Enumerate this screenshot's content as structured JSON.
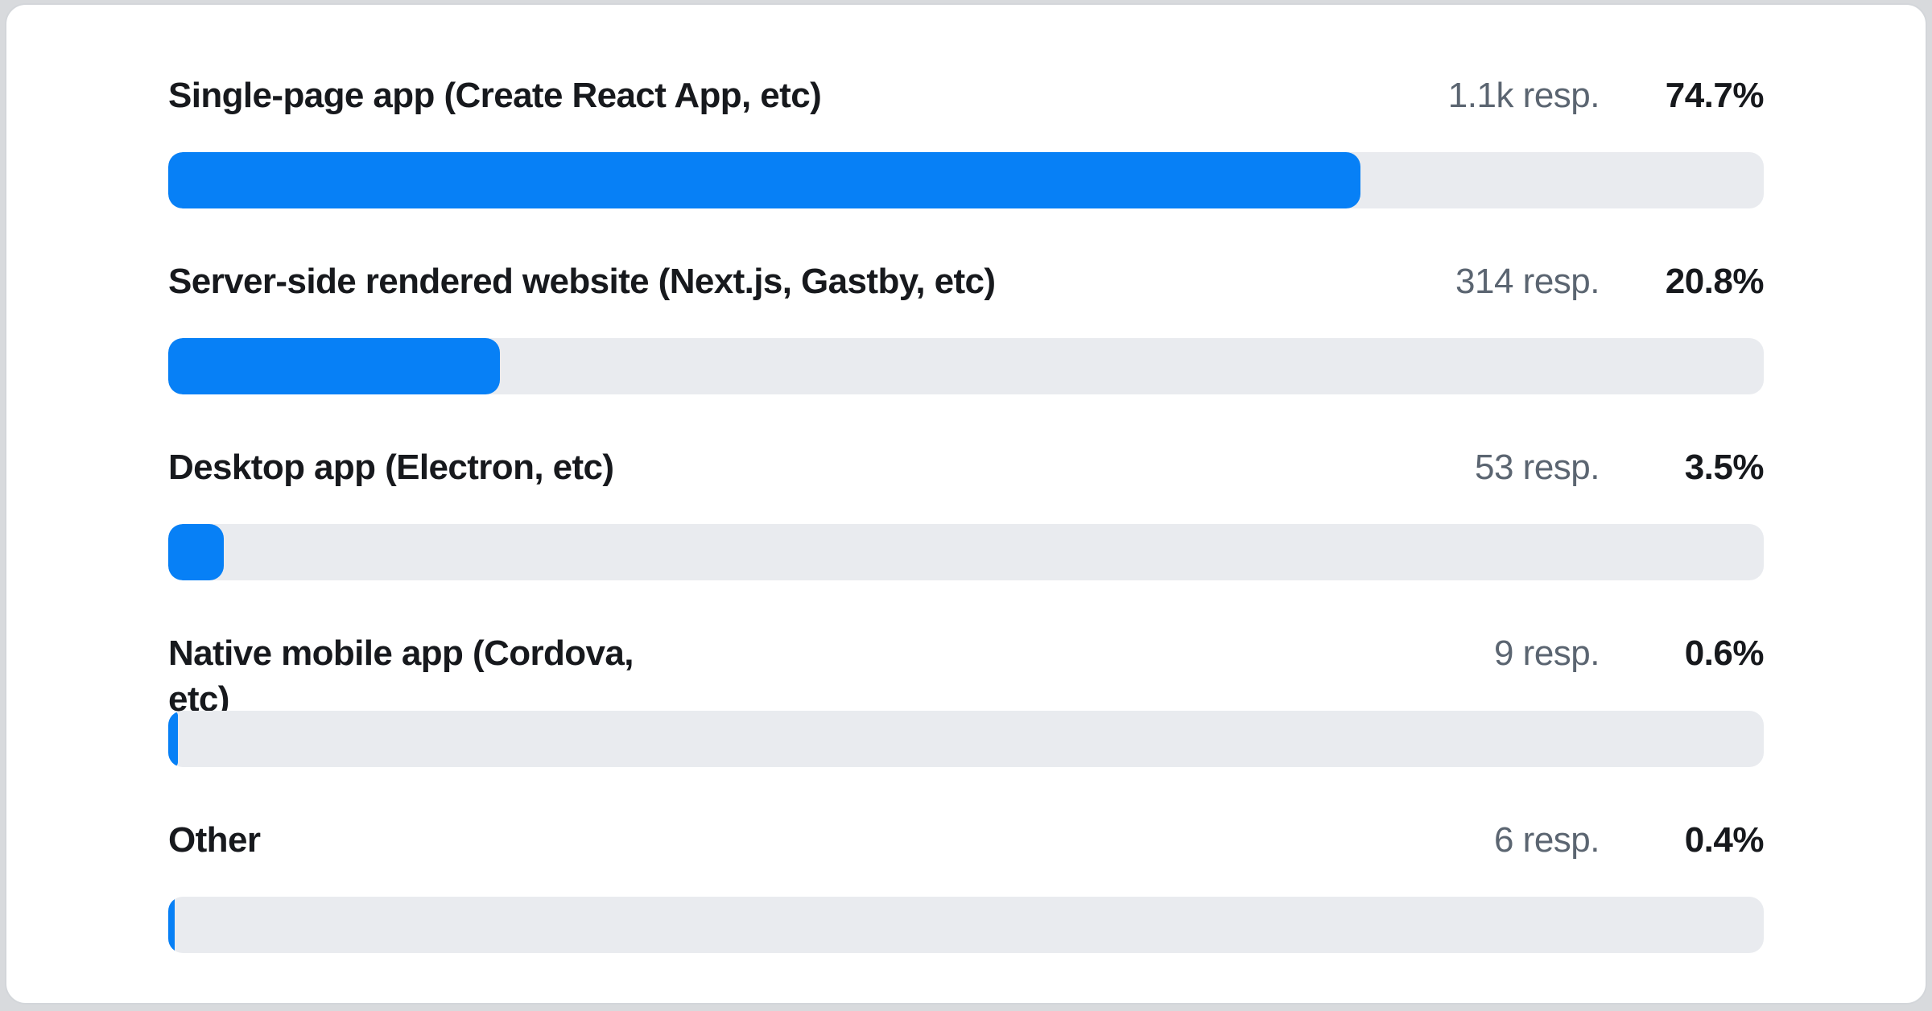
{
  "chart_data": {
    "type": "bar",
    "orientation": "horizontal",
    "title": "",
    "categories": [
      "Single-page app (Create React App, etc)",
      "Server-side rendered website (Next.js, Gastby, etc)",
      "Desktop app (Electron, etc)",
      "Native mobile app (Cordova, etc)",
      "Other"
    ],
    "values": [
      74.7,
      20.8,
      3.5,
      0.6,
      0.4
    ],
    "value_labels": [
      "74.7%",
      "20.8%",
      "3.5%",
      "0.6%",
      "0.4%"
    ],
    "response_counts": [
      "1.1k",
      "314",
      "53",
      "9",
      "6"
    ],
    "response_labels": [
      "1.1k resp.",
      "314 resp.",
      "53 resp.",
      "9 resp.",
      "6 resp."
    ],
    "xlim": [
      0,
      100
    ],
    "grid": false,
    "legend": false,
    "bar_color": "#0780f6",
    "track_color": "#e9ebef"
  },
  "rows": [
    {
      "label": "Single-page app (Create React App, etc)",
      "responses": "1.1k resp.",
      "percent": "74.7%",
      "value": 74.7
    },
    {
      "label": "Server-side rendered website (Next.js, Gastby, etc)",
      "responses": "314 resp.",
      "percent": "20.8%",
      "value": 20.8
    },
    {
      "label": "Desktop app (Electron, etc)",
      "responses": "53 resp.",
      "percent": "3.5%",
      "value": 3.5
    },
    {
      "label": "Native mobile app (Cordova,\netc)",
      "responses": "9 resp.",
      "percent": "0.6%",
      "value": 0.6
    },
    {
      "label": "Other",
      "responses": "6 resp.",
      "percent": "0.4%",
      "value": 0.4
    }
  ],
  "colors": {
    "bar_fill": "#0780f6",
    "bar_track": "#e9ebef",
    "label_text": "#17191d",
    "responses_text": "#5b6571",
    "card_border": "#d3d6da",
    "page_background": "#d8dadd"
  }
}
